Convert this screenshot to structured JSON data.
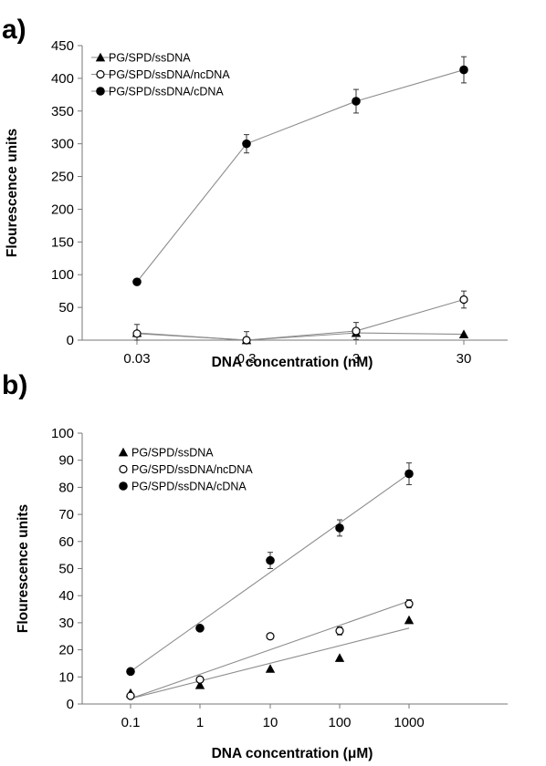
{
  "colors": {
    "line": "#8c8c8c",
    "marker": "#000000",
    "axis": "#777777"
  },
  "chart_data": [
    {
      "panel": "a)",
      "type": "line",
      "categories": [
        "0.03",
        "0.3",
        "3",
        "30"
      ],
      "xlabel": "DNA concentration (nM)",
      "ylabel": "Flourescence units",
      "ylim": [
        0,
        450
      ],
      "yticks": [
        "0",
        "50",
        "100",
        "150",
        "200",
        "250",
        "300",
        "350",
        "400",
        "450"
      ],
      "grid": false,
      "legend_position": "top-left",
      "series": [
        {
          "name": "PG/SPD/ssDNA",
          "marker": "filled-triangle",
          "values": [
            11,
            0,
            11,
            9
          ],
          "errors": [
            13,
            0,
            0,
            0
          ]
        },
        {
          "name": "PG/SPD/ssDNA/ncDNA",
          "marker": "open-circle",
          "values": [
            10,
            0,
            14,
            62
          ],
          "errors": [
            0,
            13,
            13,
            13
          ]
        },
        {
          "name": "PG/SPD/ssDNA/cDNA",
          "marker": "filled-circle",
          "values": [
            89,
            300,
            365,
            413
          ],
          "errors": [
            0,
            14,
            18,
            20
          ]
        }
      ]
    },
    {
      "panel": "b)",
      "type": "scatter",
      "categories": [
        "0.1",
        "1",
        "10",
        "100",
        "1000"
      ],
      "x_scale": "log",
      "xlabel": "DNA concentration (μM)",
      "ylabel": "Flourescence units",
      "ylim": [
        0,
        100
      ],
      "yticks": [
        "0",
        "10",
        "20",
        "30",
        "40",
        "50",
        "60",
        "70",
        "80",
        "90",
        "100"
      ],
      "grid": false,
      "legend_position": "top-left",
      "trendlines": true,
      "series": [
        {
          "name": "PG/SPD/ssDNA",
          "marker": "filled-triangle",
          "values": [
            4,
            7,
            13,
            17,
            31
          ],
          "errors": [
            0,
            0,
            0,
            0,
            0
          ],
          "trend": [
            2,
            28
          ]
        },
        {
          "name": "PG/SPD/ssDNA/ncDNA",
          "marker": "open-circle",
          "values": [
            3,
            9,
            25,
            27,
            37
          ],
          "errors": [
            0,
            0,
            0,
            1.5,
            1.5
          ],
          "trend": [
            2,
            38
          ]
        },
        {
          "name": "PG/SPD/ssDNA/cDNA",
          "marker": "filled-circle",
          "values": [
            12,
            28,
            53,
            65,
            85
          ],
          "errors": [
            0,
            0,
            3,
            3,
            4
          ],
          "trend": [
            12,
            85
          ]
        }
      ]
    }
  ]
}
